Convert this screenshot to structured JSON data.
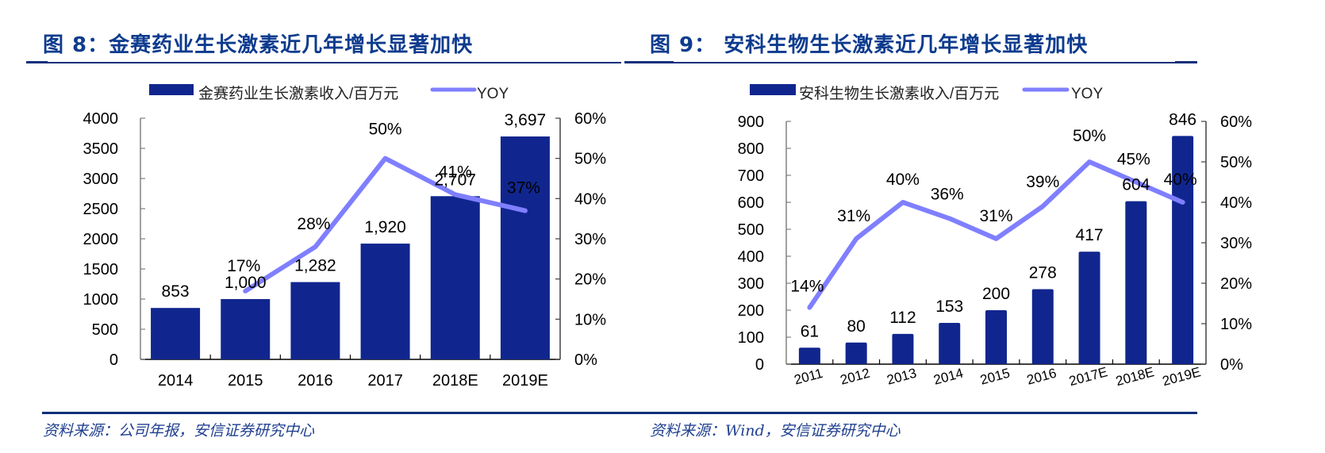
{
  "charts": [
    {
      "figure_label": "图 8:",
      "title": "图 8：金赛药业生长激素近几年增长显著加快",
      "legend": {
        "bar_label": "金赛药业生长激素收入/百万元",
        "line_label": "YOY"
      },
      "source": "资料来源：公司年报，安信证券研究中心"
    },
    {
      "figure_label": "图 9:",
      "title": "图 9：  安科生物生长激素近几年增长显著加快",
      "legend": {
        "bar_label": "安科生物生长激素收入/百万元",
        "line_label": "YOY"
      },
      "source": "资料来源：Wind，安信证券研究中心"
    }
  ],
  "colors": {
    "bar": "#10268e",
    "line": "#7f7fff",
    "title": "#0d3b8e",
    "rule": "#0d2f7a",
    "axis": "#808080"
  },
  "chart_data": [
    {
      "type": "bar+line",
      "title": "金赛药业生长激素近几年增长显著加快",
      "categories": [
        "2014",
        "2015",
        "2016",
        "2017",
        "2018E",
        "2019E"
      ],
      "series": [
        {
          "name": "金赛药业生长激素收入/百万元",
          "type": "bar",
          "axis": "left",
          "values": [
            853,
            1000,
            1282,
            1920,
            2707,
            3697
          ],
          "labels": [
            "853",
            "1,000",
            "1,282",
            "1,920",
            "2,707",
            "3,697"
          ]
        },
        {
          "name": "YOY",
          "type": "line",
          "axis": "right",
          "values": [
            null,
            17,
            28,
            50,
            41,
            37
          ],
          "labels": [
            "",
            "17%",
            "28%",
            "50%",
            "41%",
            "37%"
          ]
        }
      ],
      "left_axis": {
        "min": 0,
        "max": 4000,
        "step": 500,
        "ticks": [
          "0",
          "500",
          "1000",
          "1500",
          "2000",
          "2500",
          "3000",
          "3500",
          "4000"
        ]
      },
      "right_axis": {
        "min": 0,
        "max": 60,
        "step": 10,
        "ticks": [
          "0%",
          "10%",
          "20%",
          "30%",
          "40%",
          "50%",
          "60%"
        ]
      },
      "xlabel": "",
      "ylabel": "",
      "grid": false,
      "legend_position": "top",
      "source": "资料来源：公司年报，安信证券研究中心"
    },
    {
      "type": "bar+line",
      "title": "安科生物生长激素近几年增长显著加快",
      "categories": [
        "2011",
        "2012",
        "2013",
        "2014",
        "2015",
        "2016",
        "2017E",
        "2018E",
        "2019E"
      ],
      "series": [
        {
          "name": "安科生物生长激素收入/百万元",
          "type": "bar",
          "axis": "left",
          "values": [
            61,
            80,
            112,
            153,
            200,
            278,
            417,
            604,
            846
          ],
          "labels": [
            "61",
            "80",
            "112",
            "153",
            "200",
            "278",
            "417",
            "604",
            "846"
          ]
        },
        {
          "name": "YOY",
          "type": "line",
          "axis": "right",
          "values": [
            14,
            31,
            40,
            36,
            31,
            39,
            50,
            45,
            40
          ],
          "labels": [
            "14%",
            "31%",
            "40%",
            "36%",
            "31%",
            "39%",
            "50%",
            "45%",
            "40%"
          ]
        }
      ],
      "left_axis": {
        "min": 0,
        "max": 900,
        "step": 100,
        "ticks": [
          "0",
          "100",
          "200",
          "300",
          "400",
          "500",
          "600",
          "700",
          "800",
          "900"
        ]
      },
      "right_axis": {
        "min": 0,
        "max": 60,
        "step": 10,
        "ticks": [
          "0%",
          "10%",
          "20%",
          "30%",
          "40%",
          "50%",
          "60%"
        ]
      },
      "xlabel": "",
      "ylabel": "",
      "grid": false,
      "legend_position": "top",
      "x_tick_rotation": -15,
      "source": "资料来源：Wind，安信证券研究中心"
    }
  ]
}
